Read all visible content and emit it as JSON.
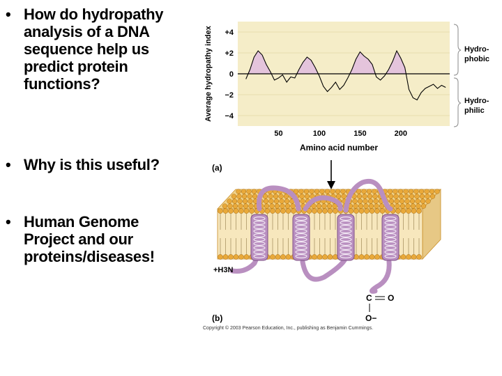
{
  "bullets": [
    {
      "text": "How do hydropathy analysis of a DNA sequence help us predict protein functions?"
    },
    {
      "text": "Why is this useful?"
    },
    {
      "text": "Human Genome Project and our proteins/diseases!"
    }
  ],
  "bullet_glyph": "•",
  "figure": {
    "panel_a_label": "(a)",
    "panel_b_label": "(b)",
    "hydrophobic_label": [
      "Hydro-",
      "phobic"
    ],
    "hydrophilic_label": [
      "Hydro-",
      "philic"
    ],
    "n_terminus": "+H3N",
    "c_terminus_c": "C",
    "c_terminus_o_double": "O",
    "c_terminus_o_minus": "O−",
    "copyright": "Copyright © 2003 Pearson Education, Inc., publishing as Benjamin Cummings.",
    "plot_bg": "#f5edc8",
    "peak_fill": "#e4c4dc",
    "protein_color": "#b98fc0",
    "lipid_head": "#e9a93a"
  },
  "chart_data": {
    "type": "line",
    "xlabel": "Amino acid number",
    "ylabel": "Average hydropathy index",
    "xlim": [
      0,
      260
    ],
    "ylim": [
      -5,
      5
    ],
    "xticks": [
      50,
      100,
      150,
      200
    ],
    "yticks": [
      4,
      2,
      0,
      -2,
      -4
    ],
    "ytick_labels": [
      "+4",
      "+2",
      "0",
      "−2",
      "−4"
    ],
    "x": [
      10,
      15,
      20,
      25,
      30,
      35,
      40,
      45,
      50,
      55,
      60,
      65,
      70,
      75,
      80,
      85,
      90,
      95,
      100,
      105,
      110,
      115,
      120,
      125,
      130,
      135,
      140,
      145,
      150,
      155,
      160,
      165,
      170,
      175,
      180,
      185,
      190,
      195,
      200,
      205,
      210,
      215,
      220,
      225,
      230,
      235,
      240,
      245,
      250,
      255
    ],
    "series": [
      {
        "values": [
          -0.5,
          0.4,
          1.6,
          2.2,
          1.8,
          0.9,
          0.2,
          -0.6,
          -0.4,
          -0.1,
          -0.8,
          -0.3,
          -0.4,
          0.4,
          1.1,
          1.6,
          1.3,
          0.6,
          -0.2,
          -1.2,
          -1.7,
          -1.3,
          -0.8,
          -1.5,
          -1.1,
          -0.4,
          0.4,
          1.4,
          2.1,
          1.7,
          1.4,
          0.9,
          -0.3,
          -0.6,
          -0.2,
          0.4,
          1.2,
          2.2,
          1.5,
          0.6,
          -1.5,
          -2.3,
          -2.5,
          -1.8,
          -1.4,
          -1.2,
          -1.0,
          -1.4,
          -1.1,
          -1.3
        ]
      }
    ]
  }
}
